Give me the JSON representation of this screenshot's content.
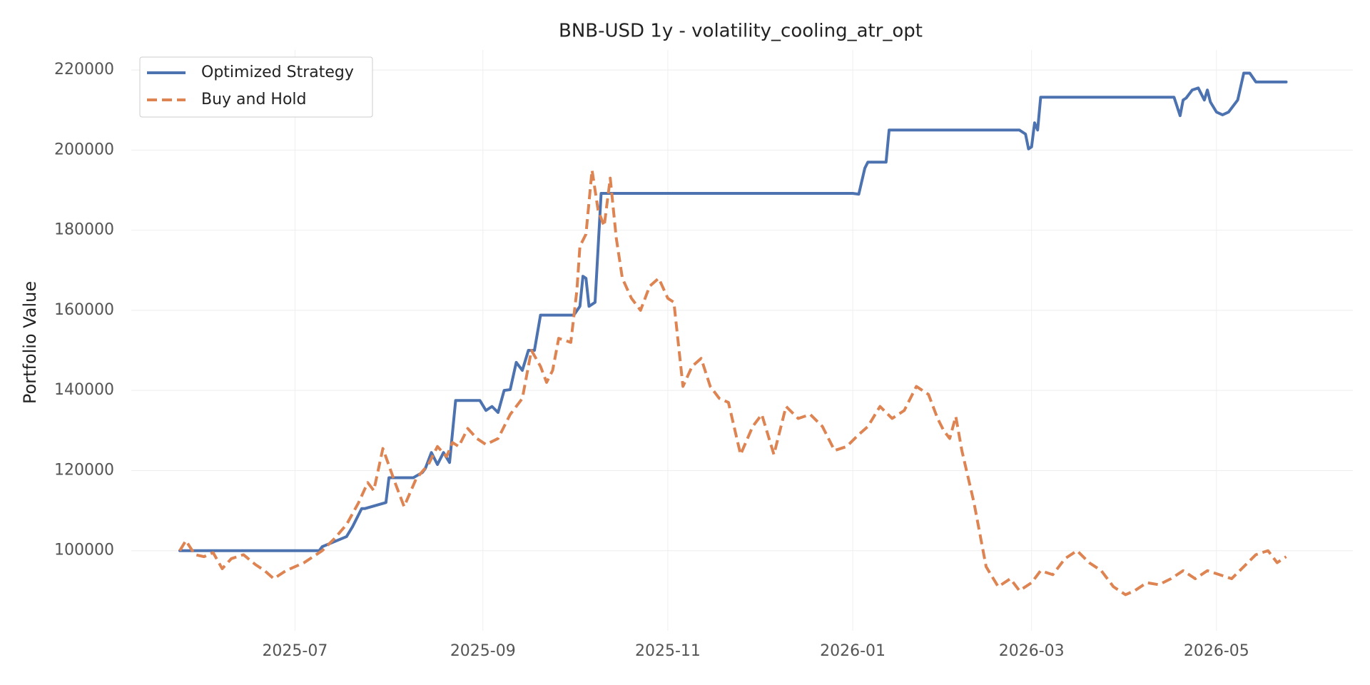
{
  "chart_data": {
    "type": "line",
    "title": "BNB-USD 1y - volatility_cooling_atr_opt",
    "xlabel": "",
    "ylabel": "Portfolio Value",
    "ylim": [
      80000,
      225000
    ],
    "xlim": [
      "2025-05-08",
      "2026-06-15"
    ],
    "xticks": [
      "2025-07",
      "2025-09",
      "2025-11",
      "2026-01",
      "2026-03",
      "2026-05"
    ],
    "xtick_dates": [
      "2025-07-01",
      "2025-09-01",
      "2025-11-01",
      "2026-01-01",
      "2026-03-01",
      "2026-05-01"
    ],
    "yticks": [
      "100000",
      "120000",
      "140000",
      "160000",
      "180000",
      "200000",
      "220000"
    ],
    "ytick_values": [
      100000,
      120000,
      140000,
      160000,
      180000,
      200000,
      220000
    ],
    "grid": true,
    "legend": "top-left",
    "series": [
      {
        "name": "Optimized Strategy",
        "color": "#4c72b0",
        "style": "solid",
        "x": [
          "2025-05-24",
          "2025-06-01",
          "2025-06-10",
          "2025-06-20",
          "2025-06-30",
          "2025-07-06",
          "2025-07-09",
          "2025-07-10",
          "2025-07-18",
          "2025-07-20",
          "2025-07-23",
          "2025-07-24",
          "2025-07-31",
          "2025-08-01",
          "2025-08-09",
          "2025-08-12",
          "2025-08-13",
          "2025-08-15",
          "2025-08-17",
          "2025-08-19",
          "2025-08-21",
          "2025-08-23",
          "2025-08-24",
          "2025-08-31",
          "2025-09-02",
          "2025-09-04",
          "2025-09-06",
          "2025-09-08",
          "2025-09-10",
          "2025-09-12",
          "2025-09-14",
          "2025-09-16",
          "2025-09-18",
          "2025-09-20",
          "2025-09-21",
          "2025-09-22",
          "2025-10-01",
          "2025-10-03",
          "2025-10-04",
          "2025-10-05",
          "2025-10-06",
          "2025-10-08",
          "2025-10-10",
          "2025-10-11",
          "2025-10-12",
          "2025-10-13",
          "2025-10-20",
          "2025-11-15",
          "2025-12-15",
          "2026-01-01",
          "2026-01-03",
          "2026-01-05",
          "2026-01-06",
          "2026-01-12",
          "2026-01-13",
          "2026-01-14",
          "2026-02-25",
          "2026-02-27",
          "2026-02-28",
          "2026-03-01",
          "2026-03-02",
          "2026-03-03",
          "2026-03-04",
          "2026-03-05",
          "2026-03-06",
          "2026-04-17",
          "2026-04-19",
          "2026-04-20",
          "2026-04-21",
          "2026-04-23",
          "2026-04-25",
          "2026-04-27",
          "2026-04-28",
          "2026-04-29",
          "2026-05-01",
          "2026-05-03",
          "2026-05-05",
          "2026-05-08",
          "2026-05-10",
          "2026-05-12",
          "2026-05-14",
          "2026-05-20",
          "2026-05-24"
        ],
        "values": [
          100000,
          100000,
          100000,
          100000,
          100000,
          100000,
          100000,
          101000,
          103500,
          106000,
          110500,
          110500,
          112000,
          118200,
          118200,
          119500,
          120500,
          124500,
          121500,
          124500,
          122000,
          137500,
          137500,
          137500,
          135000,
          136000,
          134500,
          140000,
          140200,
          147000,
          145000,
          150000,
          150000,
          158800,
          158800,
          158800,
          158800,
          161000,
          168500,
          168000,
          161000,
          162000,
          189200,
          189200,
          189200,
          189200,
          189200,
          189200,
          189200,
          189200,
          189000,
          195500,
          197000,
          197000,
          205000,
          205000,
          205000,
          204000,
          200300,
          200800,
          206800,
          205000,
          213200,
          213200,
          213200,
          213200,
          208600,
          212500,
          213000,
          215000,
          215500,
          212500,
          215000,
          212000,
          209500,
          208800,
          209500,
          212500,
          219200,
          219200,
          217000,
          217000,
          217000
        ]
      },
      {
        "name": "Buy and Hold",
        "color": "#dd8452",
        "style": "dashed",
        "x": [
          "2025-05-24",
          "2025-05-26",
          "2025-05-29",
          "2025-06-01",
          "2025-06-04",
          "2025-06-07",
          "2025-06-10",
          "2025-06-14",
          "2025-06-18",
          "2025-06-20",
          "2025-06-21",
          "2025-06-24",
          "2025-06-28",
          "2025-07-01",
          "2025-07-04",
          "2025-07-07",
          "2025-07-10",
          "2025-07-14",
          "2025-07-18",
          "2025-07-22",
          "2025-07-25",
          "2025-07-27",
          "2025-07-30",
          "2025-08-03",
          "2025-08-06",
          "2025-08-10",
          "2025-08-14",
          "2025-08-17",
          "2025-08-20",
          "2025-08-22",
          "2025-08-24",
          "2025-08-27",
          "2025-08-30",
          "2025-09-02",
          "2025-09-06",
          "2025-09-10",
          "2025-09-14",
          "2025-09-17",
          "2025-09-20",
          "2025-09-22",
          "2025-09-24",
          "2025-09-26",
          "2025-09-30",
          "2025-10-02",
          "2025-10-03",
          "2025-10-05",
          "2025-10-07",
          "2025-10-09",
          "2025-10-11",
          "2025-10-13",
          "2025-10-15",
          "2025-10-17",
          "2025-10-20",
          "2025-10-23",
          "2025-10-26",
          "2025-10-29",
          "2025-11-01",
          "2025-11-03",
          "2025-11-06",
          "2025-11-09",
          "2025-11-12",
          "2025-11-15",
          "2025-11-18",
          "2025-11-21",
          "2025-11-25",
          "2025-11-29",
          "2025-12-02",
          "2025-12-06",
          "2025-12-10",
          "2025-12-14",
          "2025-12-18",
          "2025-12-22",
          "2025-12-26",
          "2025-12-30",
          "2026-01-03",
          "2026-01-06",
          "2026-01-10",
          "2026-01-14",
          "2026-01-18",
          "2026-01-22",
          "2026-01-26",
          "2026-01-29",
          "2026-01-31",
          "2026-02-02",
          "2026-02-04",
          "2026-02-06",
          "2026-02-10",
          "2026-02-14",
          "2026-02-18",
          "2026-02-22",
          "2026-02-25",
          "2026-03-01",
          "2026-03-04",
          "2026-03-08",
          "2026-03-12",
          "2026-03-16",
          "2026-03-20",
          "2026-03-24",
          "2026-03-28",
          "2026-04-01",
          "2026-04-04",
          "2026-04-08",
          "2026-04-12",
          "2026-04-16",
          "2026-04-20",
          "2026-04-24",
          "2026-04-28",
          "2026-05-02",
          "2026-05-06",
          "2026-05-10",
          "2026-05-14",
          "2026-05-18",
          "2026-05-21",
          "2026-05-24"
        ],
        "values": [
          100000,
          102500,
          99000,
          98500,
          99500,
          95500,
          98000,
          99000,
          96500,
          95500,
          95000,
          93000,
          95000,
          96000,
          97000,
          98500,
          100000,
          103000,
          106500,
          112000,
          117000,
          115000,
          125500,
          117000,
          111000,
          118000,
          121500,
          126000,
          123500,
          127000,
          126000,
          130500,
          128000,
          126500,
          128000,
          134000,
          138000,
          150000,
          146000,
          142000,
          145000,
          153000,
          152000,
          165000,
          176000,
          179000,
          195000,
          185000,
          181000,
          193000,
          178000,
          168000,
          163000,
          160000,
          166000,
          168000,
          163000,
          162000,
          141000,
          146000,
          148000,
          141000,
          138000,
          137000,
          124000,
          131000,
          134000,
          124000,
          136000,
          133000,
          134000,
          131000,
          125000,
          126000,
          129000,
          131000,
          136000,
          133000,
          135000,
          141000,
          139000,
          133000,
          130000,
          128000,
          133500,
          125000,
          112000,
          96000,
          91000,
          93000,
          90000,
          92000,
          95000,
          94000,
          98000,
          100000,
          97000,
          95000,
          91000,
          89000,
          90000,
          92000,
          91500,
          93000,
          95000,
          93000,
          95000,
          94000,
          93000,
          96000,
          99000,
          100000,
          97000,
          98500
        ]
      }
    ]
  }
}
